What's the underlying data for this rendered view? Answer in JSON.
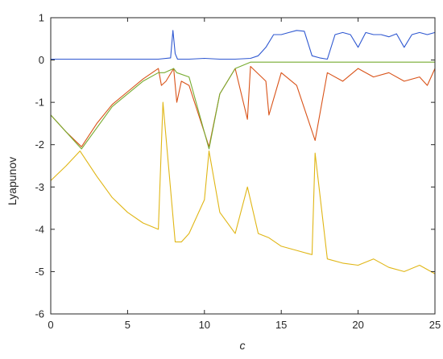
{
  "chart_data": {
    "type": "line",
    "xlabel": "c",
    "ylabel": "Lyapunov",
    "xlim": [
      0,
      25
    ],
    "ylim": [
      -6,
      1
    ],
    "xticks": [
      0,
      5,
      10,
      15,
      20,
      25
    ],
    "yticks": [
      1,
      0,
      -1,
      -2,
      -3,
      -4,
      -5,
      -6
    ],
    "grid": false,
    "legend": "none",
    "box": true,
    "colors": {
      "series1": "#2f58d1",
      "series2": "#d95319",
      "series3": "#77ac30",
      "series4": "#e0b615",
      "axes": "#262626"
    },
    "series": [
      {
        "x": [
          0,
          1,
          2,
          3,
          4,
          5,
          6,
          7,
          7.8,
          7.95,
          8.1,
          8.25,
          8.5,
          9,
          10,
          11,
          12,
          13,
          13.5,
          14,
          14.5,
          15,
          15.5,
          16,
          16.5,
          17,
          17.5,
          18,
          18.5,
          19,
          19.5,
          20,
          20.5,
          21,
          21.5,
          22,
          22.5,
          23,
          23.5,
          24,
          24.5,
          25
        ],
        "y": [
          0.02,
          0.02,
          0.02,
          0.02,
          0.02,
          0.02,
          0.02,
          0.02,
          0.05,
          0.7,
          0.15,
          0.02,
          0.02,
          0.02,
          0.04,
          0.02,
          0.02,
          0.04,
          0.1,
          0.3,
          0.6,
          0.6,
          0.65,
          0.7,
          0.68,
          0.1,
          0.05,
          0.02,
          0.6,
          0.65,
          0.6,
          0.3,
          0.65,
          0.6,
          0.6,
          0.55,
          0.62,
          0.3,
          0.6,
          0.65,
          0.6,
          0.65
        ]
      },
      {
        "x": [
          0,
          1,
          2,
          3,
          4,
          5,
          6,
          7,
          7.2,
          7.5,
          8.0,
          8.2,
          8.5,
          9,
          10.3,
          11,
          12,
          12.8,
          13,
          14,
          14.2,
          15,
          16,
          17.2,
          18,
          19,
          20,
          21,
          22,
          23,
          24,
          24.5,
          25
        ],
        "y": [
          -1.3,
          -1.7,
          -2.05,
          -1.5,
          -1.05,
          -0.75,
          -0.45,
          -0.2,
          -0.6,
          -0.5,
          -0.2,
          -1.0,
          -0.5,
          -0.6,
          -2.05,
          -0.8,
          -0.2,
          -1.4,
          -0.15,
          -0.5,
          -1.3,
          -0.3,
          -0.6,
          -1.9,
          -0.3,
          -0.5,
          -0.2,
          -0.4,
          -0.3,
          -0.5,
          -0.4,
          -0.6,
          -0.2
        ]
      },
      {
        "x": [
          0,
          2,
          4,
          6,
          7,
          7.4,
          8,
          8.2,
          9,
          10.3,
          11,
          12,
          13,
          14,
          15,
          16,
          17,
          18,
          19,
          20,
          21,
          22,
          23,
          24,
          25
        ],
        "y": [
          -1.3,
          -2.1,
          -1.1,
          -0.5,
          -0.3,
          -0.3,
          -0.2,
          -0.3,
          -0.4,
          -2.1,
          -0.8,
          -0.2,
          -0.05,
          -0.05,
          -0.05,
          -0.05,
          -0.05,
          -0.05,
          -0.05,
          -0.05,
          -0.05,
          -0.05,
          -0.05,
          -0.05,
          -0.05
        ]
      },
      {
        "x": [
          0,
          1,
          1.9,
          3,
          4,
          5,
          6,
          7,
          7.3,
          8.1,
          8.5,
          9,
          10,
          10.3,
          11,
          12,
          12.8,
          13.5,
          14.2,
          15,
          16,
          17,
          17.2,
          18,
          19,
          20,
          21,
          22,
          23,
          24,
          25
        ],
        "y": [
          -2.85,
          -2.5,
          -2.15,
          -2.75,
          -3.25,
          -3.6,
          -3.85,
          -4.0,
          -1.0,
          -4.3,
          -4.3,
          -4.1,
          -3.3,
          -2.15,
          -3.6,
          -4.1,
          -3.0,
          -4.1,
          -4.2,
          -4.4,
          -4.5,
          -4.6,
          -2.2,
          -4.7,
          -4.8,
          -4.85,
          -4.7,
          -4.9,
          -5.0,
          -4.85,
          -5.05
        ]
      }
    ]
  }
}
